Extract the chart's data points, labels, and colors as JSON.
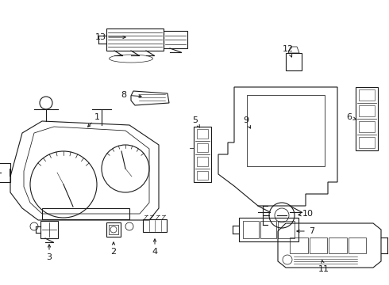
{
  "background_color": "#ffffff",
  "line_color": "#1a1a1a",
  "fig_width": 4.9,
  "fig_height": 3.6,
  "dpi": 100,
  "label_fontsize": 8.0,
  "arrow_lw": 0.7,
  "part_lw": 0.8
}
